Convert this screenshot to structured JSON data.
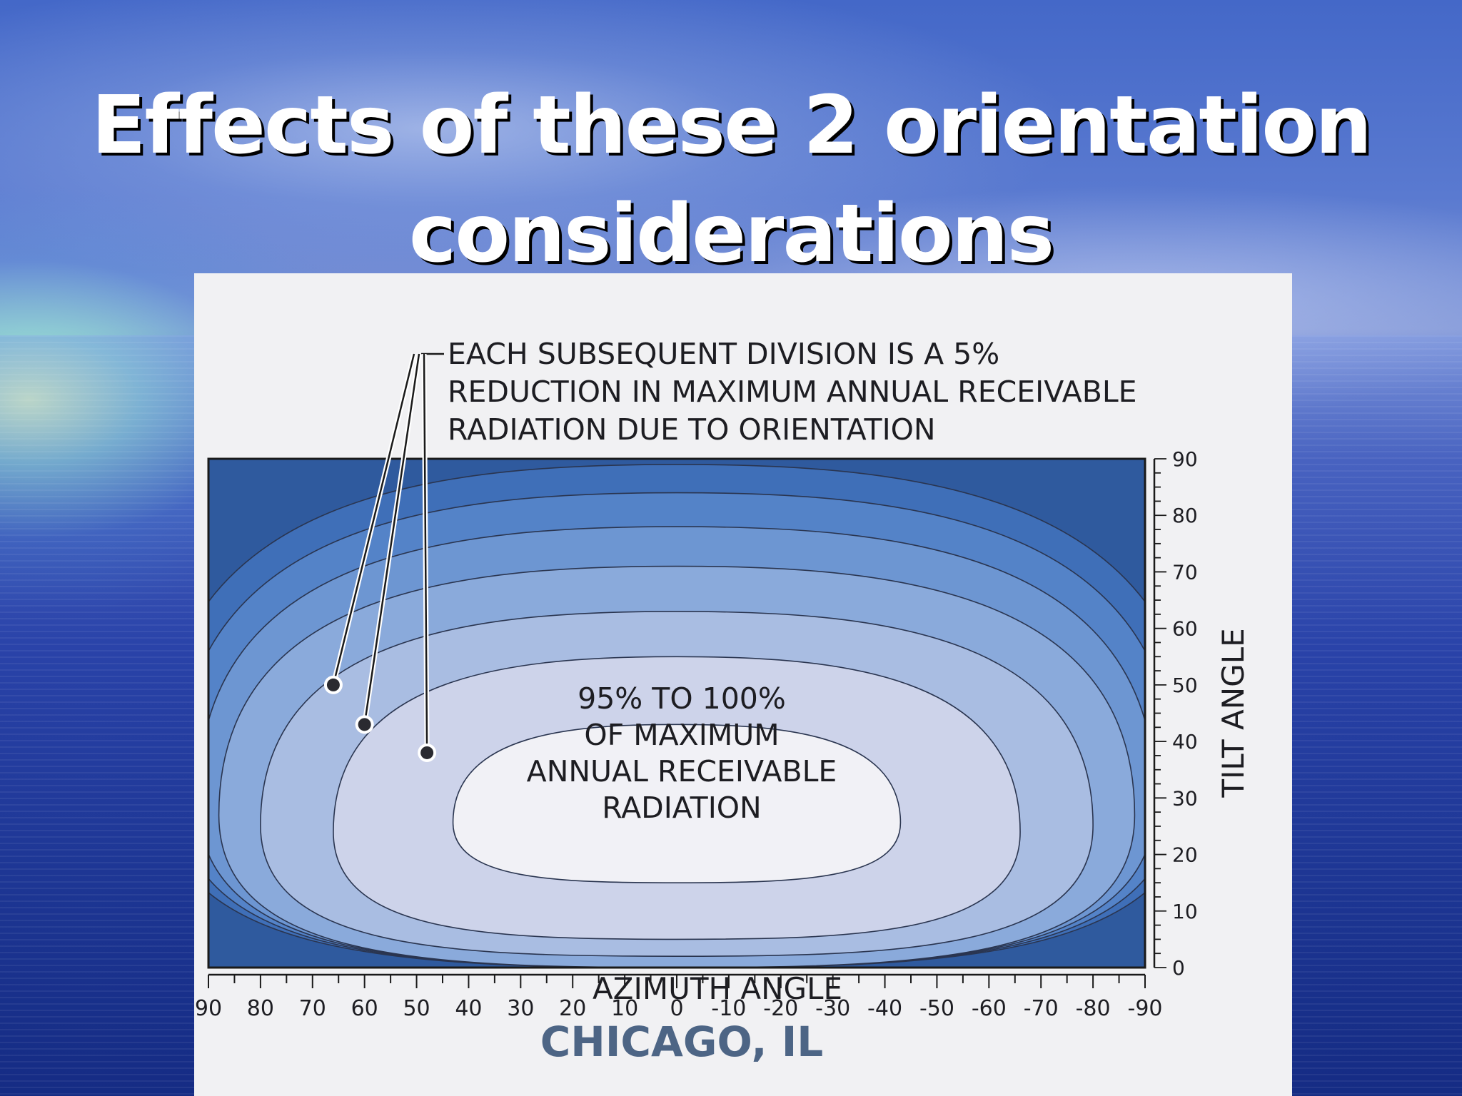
{
  "slide": {
    "title_line1": "Effects of these 2 orientation",
    "title_line2": "considerations"
  },
  "chart_data": {
    "type": "contour",
    "annotation": [
      "EACH SUBSEQUENT DIVISION IS A 5%",
      "REDUCTION IN MAXIMUM ANNUAL RECEIVABLE",
      "RADIATION DUE TO ORIENTATION"
    ],
    "center_label": [
      "95% TO 100%",
      "OF MAXIMUM",
      "ANNUAL RECEIVABLE",
      "RADIATION"
    ],
    "xlabel": "AZIMUTH ANGLE",
    "ylabel": "TILT ANGLE",
    "location": "CHICAGO, IL",
    "x_ticks": [
      "90",
      "80",
      "70",
      "60",
      "50",
      "40",
      "30",
      "20",
      "10",
      "0",
      "-10",
      "-20",
      "-30",
      "-40",
      "-50",
      "-60",
      "-70",
      "-80",
      "-90"
    ],
    "y_ticks": [
      "90",
      "80",
      "70",
      "60",
      "50",
      "40",
      "30",
      "20",
      "10",
      "0"
    ],
    "xlim": [
      90,
      -90
    ],
    "ylim": [
      0,
      90
    ],
    "levels": [
      {
        "percent_min": 95,
        "half_width_deg": 43,
        "tilt_low": 15,
        "tilt_high": 43,
        "color": "#f1f1f6"
      },
      {
        "percent_min": 90,
        "half_width_deg": 66,
        "tilt_low": 5,
        "tilt_high": 55,
        "color": "#cdd3ea"
      },
      {
        "percent_min": 85,
        "half_width_deg": 80,
        "tilt_low": 2,
        "tilt_high": 63,
        "color": "#a9bde2"
      },
      {
        "percent_min": 80,
        "half_width_deg": 88,
        "tilt_low": 0,
        "tilt_high": 71,
        "color": "#8aaadb"
      },
      {
        "percent_min": 75,
        "half_width_deg": 92,
        "tilt_low": 0,
        "tilt_high": 78,
        "color": "#6d96d2"
      },
      {
        "percent_min": 70,
        "half_width_deg": 96,
        "tilt_low": 0,
        "tilt_high": 84,
        "color": "#5483c8"
      },
      {
        "percent_min": 65,
        "half_width_deg": 100,
        "tilt_low": 0,
        "tilt_high": 89,
        "color": "#3f6fb8"
      }
    ],
    "outer_color": "#2f5a9e",
    "marker_points": [
      {
        "azimuth": 66,
        "tilt": 50
      },
      {
        "azimuth": 60,
        "tilt": 43
      },
      {
        "azimuth": 48,
        "tilt": 38
      }
    ]
  }
}
